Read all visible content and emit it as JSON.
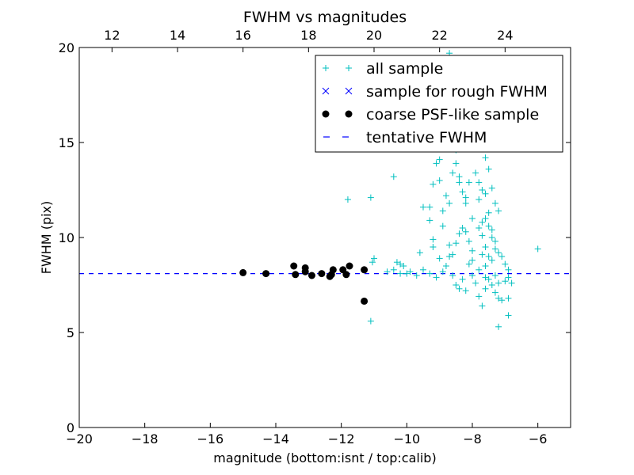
{
  "chart_data": {
    "type": "scatter",
    "title": "FWHM vs magnitudes",
    "xlabel": "magnitude (bottom:isnt / top:calib)",
    "ylabel": "FWHM (pix)",
    "xlim": [
      -20,
      -5
    ],
    "ylim": [
      0,
      20
    ],
    "x_ticks": [
      -20,
      -18,
      -16,
      -14,
      -12,
      -10,
      -8,
      -6
    ],
    "x_tick_labels": [
      "−20",
      "−18",
      "−16",
      "−14",
      "−12",
      "−10",
      "−8",
      "−6"
    ],
    "y_ticks": [
      0,
      5,
      10,
      15,
      20
    ],
    "y_tick_labels": [
      "0",
      "5",
      "10",
      "15",
      "20"
    ],
    "top_axis": {
      "ticks": [
        12,
        14,
        16,
        18,
        20,
        22,
        24
      ],
      "tick_labels": [
        "12",
        "14",
        "16",
        "18",
        "20",
        "22",
        "24"
      ],
      "offset": 31
    },
    "grid": false,
    "legend_position": "top-right",
    "series": [
      {
        "name": "all sample",
        "marker": "plus",
        "color": "#00bfbf",
        "points": [
          [
            -11.05,
            8.7
          ],
          [
            -11.0,
            8.9
          ],
          [
            -11.1,
            12.1
          ],
          [
            -11.1,
            5.6
          ],
          [
            -11.8,
            12.0
          ],
          [
            -10.6,
            8.2
          ],
          [
            -10.4,
            8.3
          ],
          [
            -10.3,
            8.7
          ],
          [
            -10.2,
            8.6
          ],
          [
            -10.1,
            8.5
          ],
          [
            -10.2,
            8.1
          ],
          [
            -9.9,
            8.2
          ],
          [
            -9.7,
            8.0
          ],
          [
            -10.4,
            13.2
          ],
          [
            -10.0,
            8.1
          ],
          [
            -9.6,
            9.2
          ],
          [
            -9.5,
            8.3
          ],
          [
            -9.5,
            11.6
          ],
          [
            -9.3,
            11.6
          ],
          [
            -9.3,
            10.9
          ],
          [
            -9.2,
            12.8
          ],
          [
            -9.2,
            9.9
          ],
          [
            -9.1,
            13.9
          ],
          [
            -9.0,
            13.0
          ],
          [
            -8.9,
            11.4
          ],
          [
            -8.8,
            12.2
          ],
          [
            -8.7,
            11.8
          ],
          [
            -8.6,
            13.4
          ],
          [
            -8.5,
            13.9
          ],
          [
            -8.4,
            12.9
          ],
          [
            -8.3,
            12.4
          ],
          [
            -8.2,
            11.8
          ],
          [
            -8.1,
            12.9
          ],
          [
            -8.0,
            11.0
          ],
          [
            -7.9,
            13.4
          ],
          [
            -7.8,
            12.9
          ],
          [
            -7.7,
            12.5
          ],
          [
            -7.6,
            12.3
          ],
          [
            -7.5,
            13.6
          ],
          [
            -7.4,
            12.6
          ],
          [
            -7.3,
            11.8
          ],
          [
            -7.2,
            11.4
          ],
          [
            -7.8,
            10.5
          ],
          [
            -7.7,
            10.1
          ],
          [
            -7.6,
            11.0
          ],
          [
            -7.5,
            10.6
          ],
          [
            -7.4,
            10.4
          ],
          [
            -7.3,
            9.8
          ],
          [
            -7.6,
            9.5
          ],
          [
            -7.7,
            9.1
          ],
          [
            -7.5,
            9.0
          ],
          [
            -7.4,
            8.8
          ],
          [
            -7.3,
            9.4
          ],
          [
            -7.2,
            9.2
          ],
          [
            -7.1,
            9.0
          ],
          [
            -7.0,
            8.6
          ],
          [
            -6.9,
            8.3
          ],
          [
            -8.0,
            9.3
          ],
          [
            -8.1,
            9.8
          ],
          [
            -8.2,
            10.3
          ],
          [
            -8.3,
            10.5
          ],
          [
            -8.4,
            10.2
          ],
          [
            -8.5,
            9.7
          ],
          [
            -8.6,
            9.1
          ],
          [
            -8.7,
            9.6
          ],
          [
            -8.8,
            8.5
          ],
          [
            -8.9,
            8.2
          ],
          [
            -9.0,
            8.9
          ],
          [
            -9.1,
            7.9
          ],
          [
            -8.5,
            7.5
          ],
          [
            -8.4,
            7.3
          ],
          [
            -8.3,
            7.8
          ],
          [
            -8.0,
            8.0
          ],
          [
            -7.9,
            7.6
          ],
          [
            -7.8,
            6.9
          ],
          [
            -7.7,
            6.4
          ],
          [
            -7.6,
            7.3
          ],
          [
            -7.5,
            7.8
          ],
          [
            -7.3,
            7.1
          ],
          [
            -7.2,
            6.8
          ],
          [
            -7.1,
            6.7
          ],
          [
            -7.0,
            7.7
          ],
          [
            -6.9,
            7.9
          ],
          [
            -6.8,
            7.6
          ],
          [
            -6.9,
            6.8
          ],
          [
            -7.2,
            5.3
          ],
          [
            -6.9,
            5.9
          ],
          [
            -7.3,
            8.0
          ],
          [
            -7.4,
            7.5
          ],
          [
            -7.6,
            7.9
          ],
          [
            -7.8,
            8.3
          ],
          [
            -8.1,
            8.6
          ],
          [
            -8.2,
            7.2
          ],
          [
            -8.6,
            8.0
          ],
          [
            -9.3,
            8.1
          ],
          [
            -6.0,
            9.4
          ],
          [
            -8.7,
            19.7
          ],
          [
            -8.0,
            16.5
          ],
          [
            -8.3,
            16.0
          ],
          [
            -8.5,
            14.6
          ],
          [
            -9.0,
            14.1
          ],
          [
            -7.9,
            15.3
          ],
          [
            -8.4,
            13.2
          ],
          [
            -7.6,
            14.2
          ],
          [
            -7.8,
            12.0
          ],
          [
            -8.2,
            12.1
          ],
          [
            -7.5,
            11.3
          ],
          [
            -7.7,
            10.8
          ],
          [
            -7.4,
            10.0
          ],
          [
            -8.9,
            10.6
          ],
          [
            -9.2,
            9.5
          ],
          [
            -8.7,
            9.0
          ],
          [
            -8.0,
            8.8
          ],
          [
            -7.6,
            8.5
          ],
          [
            -7.2,
            7.6
          ]
        ]
      },
      {
        "name": "sample for rough FWHM",
        "marker": "x",
        "color": "#0000ff",
        "points": []
      },
      {
        "name": "coarse PSF-like sample",
        "marker": "circle",
        "color": "#000000",
        "points": [
          [
            -15.0,
            8.15
          ],
          [
            -14.3,
            8.1
          ],
          [
            -13.45,
            8.5
          ],
          [
            -13.4,
            8.05
          ],
          [
            -13.1,
            8.4
          ],
          [
            -13.1,
            8.2
          ],
          [
            -12.9,
            8.0
          ],
          [
            -12.6,
            8.1
          ],
          [
            -12.35,
            7.95
          ],
          [
            -12.3,
            8.05
          ],
          [
            -12.25,
            8.3
          ],
          [
            -11.95,
            8.3
          ],
          [
            -11.85,
            8.05
          ],
          [
            -11.75,
            8.5
          ],
          [
            -11.3,
            8.3
          ],
          [
            -11.3,
            6.65
          ]
        ]
      },
      {
        "name": "tentative FWHM",
        "marker": "dashed-line",
        "color": "#0000ff",
        "y_value": 8.1
      }
    ]
  }
}
